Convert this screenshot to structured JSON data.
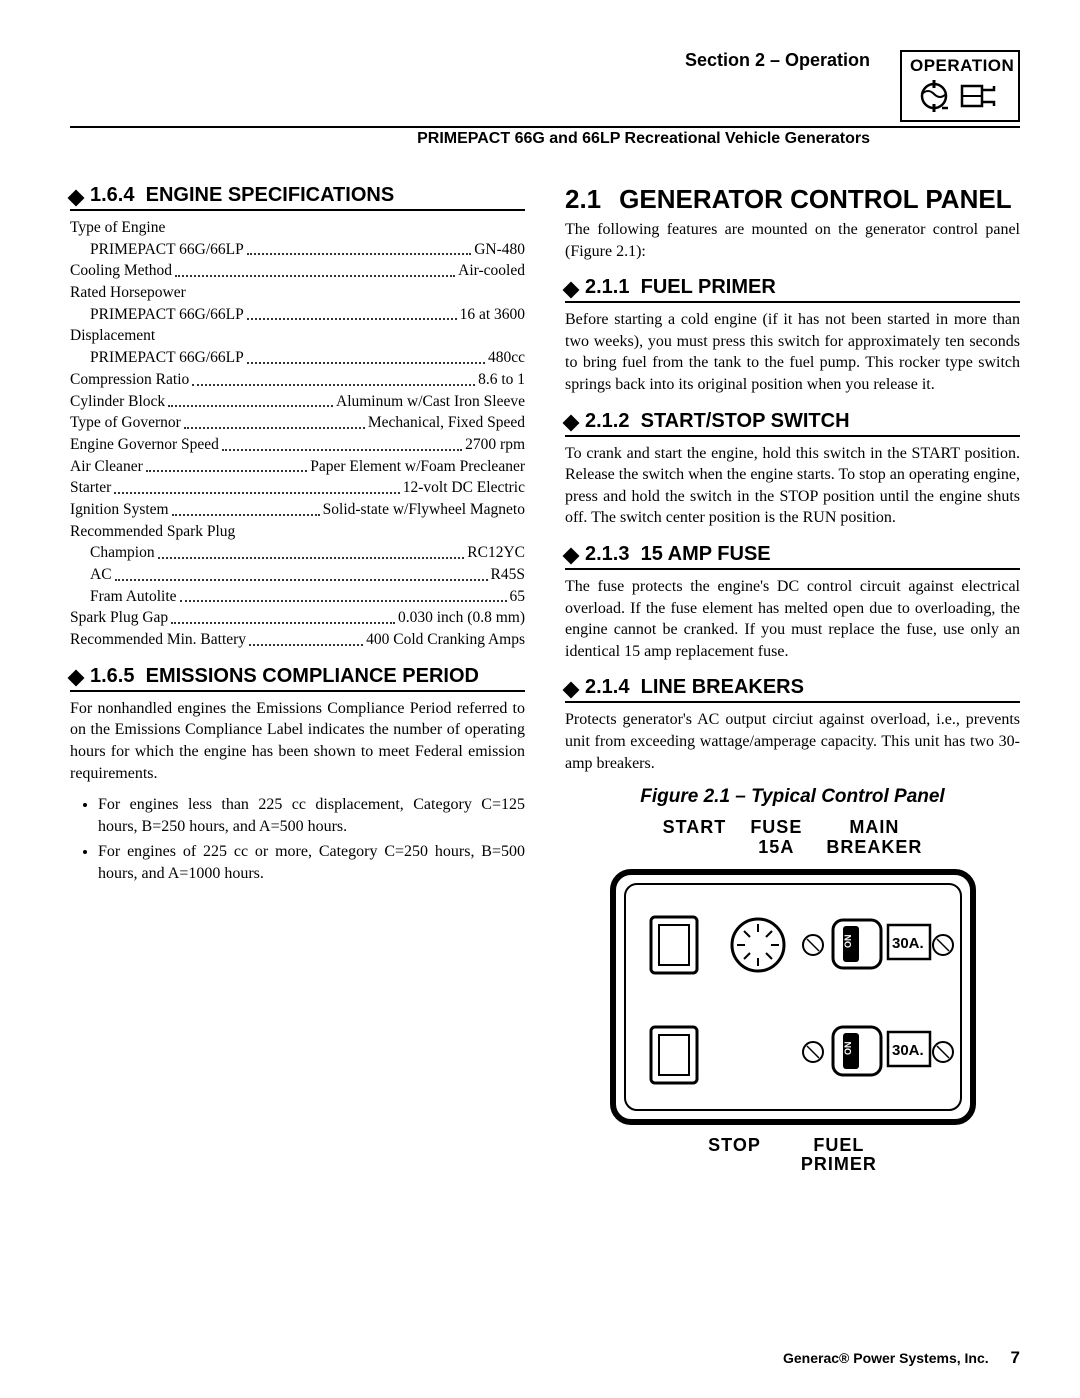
{
  "header": {
    "section_label": "Section 2 – Operation",
    "product_line": "PRIMEPACT 66G and 66LP Recreational Vehicle Generators",
    "operation_box_title": "OPERATION"
  },
  "left": {
    "sec_164": {
      "number": "1.6.4",
      "title": "ENGINE SPECIFICATIONS",
      "rows": [
        {
          "label": "Type of Engine",
          "value": "",
          "indent": false,
          "noval": true
        },
        {
          "label": "PRIMEPACT 66G/66LP",
          "value": "GN-480",
          "indent": true
        },
        {
          "label": "Cooling Method",
          "value": "Air-cooled",
          "indent": false
        },
        {
          "label": "Rated Horsepower",
          "value": "",
          "indent": false,
          "noval": true
        },
        {
          "label": "PRIMEPACT 66G/66LP",
          "value": "16 at 3600",
          "indent": true
        },
        {
          "label": "Displacement",
          "value": "",
          "indent": false,
          "noval": true
        },
        {
          "label": "PRIMEPACT 66G/66LP",
          "value": "480cc",
          "indent": true
        },
        {
          "label": "Compression Ratio",
          "value": "8.6 to 1",
          "indent": false
        },
        {
          "label": "Cylinder Block",
          "value": "Aluminum w/Cast Iron Sleeve",
          "indent": false
        },
        {
          "label": "Type of Governor",
          "value": "Mechanical, Fixed Speed",
          "indent": false
        },
        {
          "label": "Engine Governor Speed",
          "value": "2700 rpm",
          "indent": false
        },
        {
          "label": "Air Cleaner",
          "value": "Paper Element w/Foam Precleaner",
          "indent": false
        },
        {
          "label": "Starter",
          "value": "12-volt DC Electric",
          "indent": false
        },
        {
          "label": "Ignition System",
          "value": "Solid-state w/Flywheel Magneto",
          "indent": false
        },
        {
          "label": "Recommended Spark Plug",
          "value": "",
          "indent": false,
          "noval": true
        },
        {
          "label": "Champion",
          "value": "RC12YC",
          "indent": true
        },
        {
          "label": "AC",
          "value": "R45S",
          "indent": true
        },
        {
          "label": "Fram Autolite",
          "value": "65",
          "indent": true
        },
        {
          "label": "Spark Plug Gap",
          "value": "0.030 inch (0.8 mm)",
          "indent": false
        },
        {
          "label": "Recommended Min. Battery",
          "value": "400 Cold Cranking Amps",
          "indent": false
        }
      ]
    },
    "sec_165": {
      "number": "1.6.5",
      "title": "EMISSIONS COMPLIANCE PERIOD",
      "para": "For nonhandled engines the Emissions Compliance Period referred to on the Emissions Compliance Label indicates the number of operating hours for which the engine has been shown to meet Federal emission requirements.",
      "bullets": [
        "For engines less than 225 cc displacement, Category C=125 hours, B=250 hours, and A=500 hours.",
        "For engines of 225 cc or more, Category C=250 hours, B=500 hours, and A=1000 hours."
      ]
    }
  },
  "right": {
    "sec_21": {
      "number": "2.1",
      "title": "GENERATOR CONTROL PANEL",
      "para": "The following features are mounted on the generator control panel (Figure 2.1):"
    },
    "subs": [
      {
        "number": "2.1.1",
        "title": "FUEL PRIMER",
        "para": "Before starting a cold engine (if it has not been started in more than two weeks), you must press this switch for approximately ten seconds to bring fuel from the tank to the fuel pump. This rocker type switch springs back into its original position when you release it."
      },
      {
        "number": "2.1.2",
        "title": "START/STOP SWITCH",
        "para": "To crank and start the engine, hold this switch in the START position. Release the switch when the engine starts. To stop an operating engine, press and hold the switch in the STOP position until the engine shuts off. The switch center position is the RUN position."
      },
      {
        "number": "2.1.3",
        "title": "15 AMP FUSE",
        "para": "The fuse protects the engine's DC control circuit against electrical overload. If the fuse element has melted open due to overloading, the engine cannot be cranked. If you must replace the fuse, use only an identical 15 amp replacement fuse."
      },
      {
        "number": "2.1.4",
        "title": "LINE BREAKERS",
        "para": "Protects generator's AC output circiut against overload, i.e., prevents unit from exceeding wattage/amperage capacity. This unit has two 30-amp breakers."
      }
    ],
    "figure": {
      "caption": "Figure 2.1 – Typical Control Panel",
      "labels_top": [
        "START",
        "FUSE\n15A",
        "MAIN\nBREAKER"
      ],
      "labels_bottom": [
        "STOP",
        "FUEL\nPRIMER"
      ],
      "breaker_text": "30A."
    }
  },
  "footer": {
    "company": "Generac® Power Systems, Inc.",
    "page": "7"
  }
}
